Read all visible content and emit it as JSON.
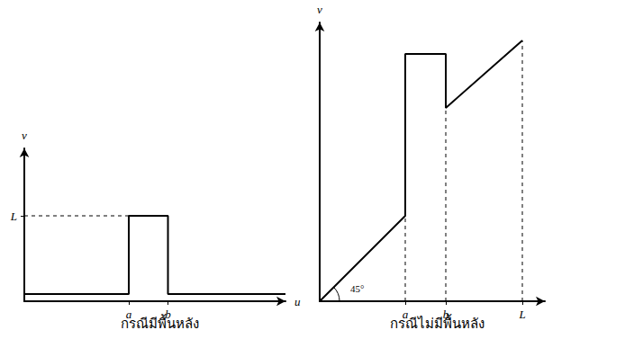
{
  "chart_data": [
    {
      "type": "line",
      "title": "กรณีมีพื้นหลัง",
      "x_label": "u",
      "y_label": "v",
      "xlim": [
        0,
        300
      ],
      "ylim": [
        0,
        170
      ],
      "xticks": [
        {
          "value": 120,
          "label": "a"
        },
        {
          "value": 165,
          "label": "b"
        }
      ],
      "yticks": [
        {
          "value": 95,
          "label": "L"
        }
      ],
      "grid": false,
      "series": [
        {
          "color": "#000000",
          "line_style": "solid",
          "x": [
            0,
            120,
            120,
            165,
            165,
            300
          ],
          "values": [
            8,
            8,
            95,
            95,
            8,
            8
          ]
        },
        {
          "color": "#000000",
          "line_style": "dashed",
          "x": [
            0,
            120
          ],
          "values": [
            95,
            95
          ]
        }
      ]
    },
    {
      "type": "line",
      "title": "กรณีไม่มีพื้นหลัง",
      "y_label": "v",
      "xlim": [
        0,
        250
      ],
      "ylim": [
        0,
        310
      ],
      "xticks": [
        {
          "value": 95,
          "label": "a"
        },
        {
          "value": 140,
          "label": "b"
        },
        {
          "value": 225,
          "label": "L"
        }
      ],
      "yticks": [],
      "grid": false,
      "annotations": [
        {
          "text": "45°",
          "x": 34,
          "y": 14
        }
      ],
      "series": [
        {
          "color": "#000000",
          "line_style": "solid",
          "x": [
            0,
            95,
            95,
            140,
            140,
            225
          ],
          "values": [
            0,
            95,
            275,
            275,
            215,
            290
          ]
        },
        {
          "color": "#000000",
          "line_style": "dashed",
          "x": [
            95,
            95
          ],
          "values": [
            0,
            95
          ]
        },
        {
          "color": "#000000",
          "line_style": "dashed",
          "x": [
            140,
            140
          ],
          "values": [
            0,
            215
          ]
        },
        {
          "color": "#000000",
          "line_style": "dashed",
          "x": [
            225,
            225
          ],
          "values": [
            0,
            290
          ]
        }
      ]
    }
  ]
}
